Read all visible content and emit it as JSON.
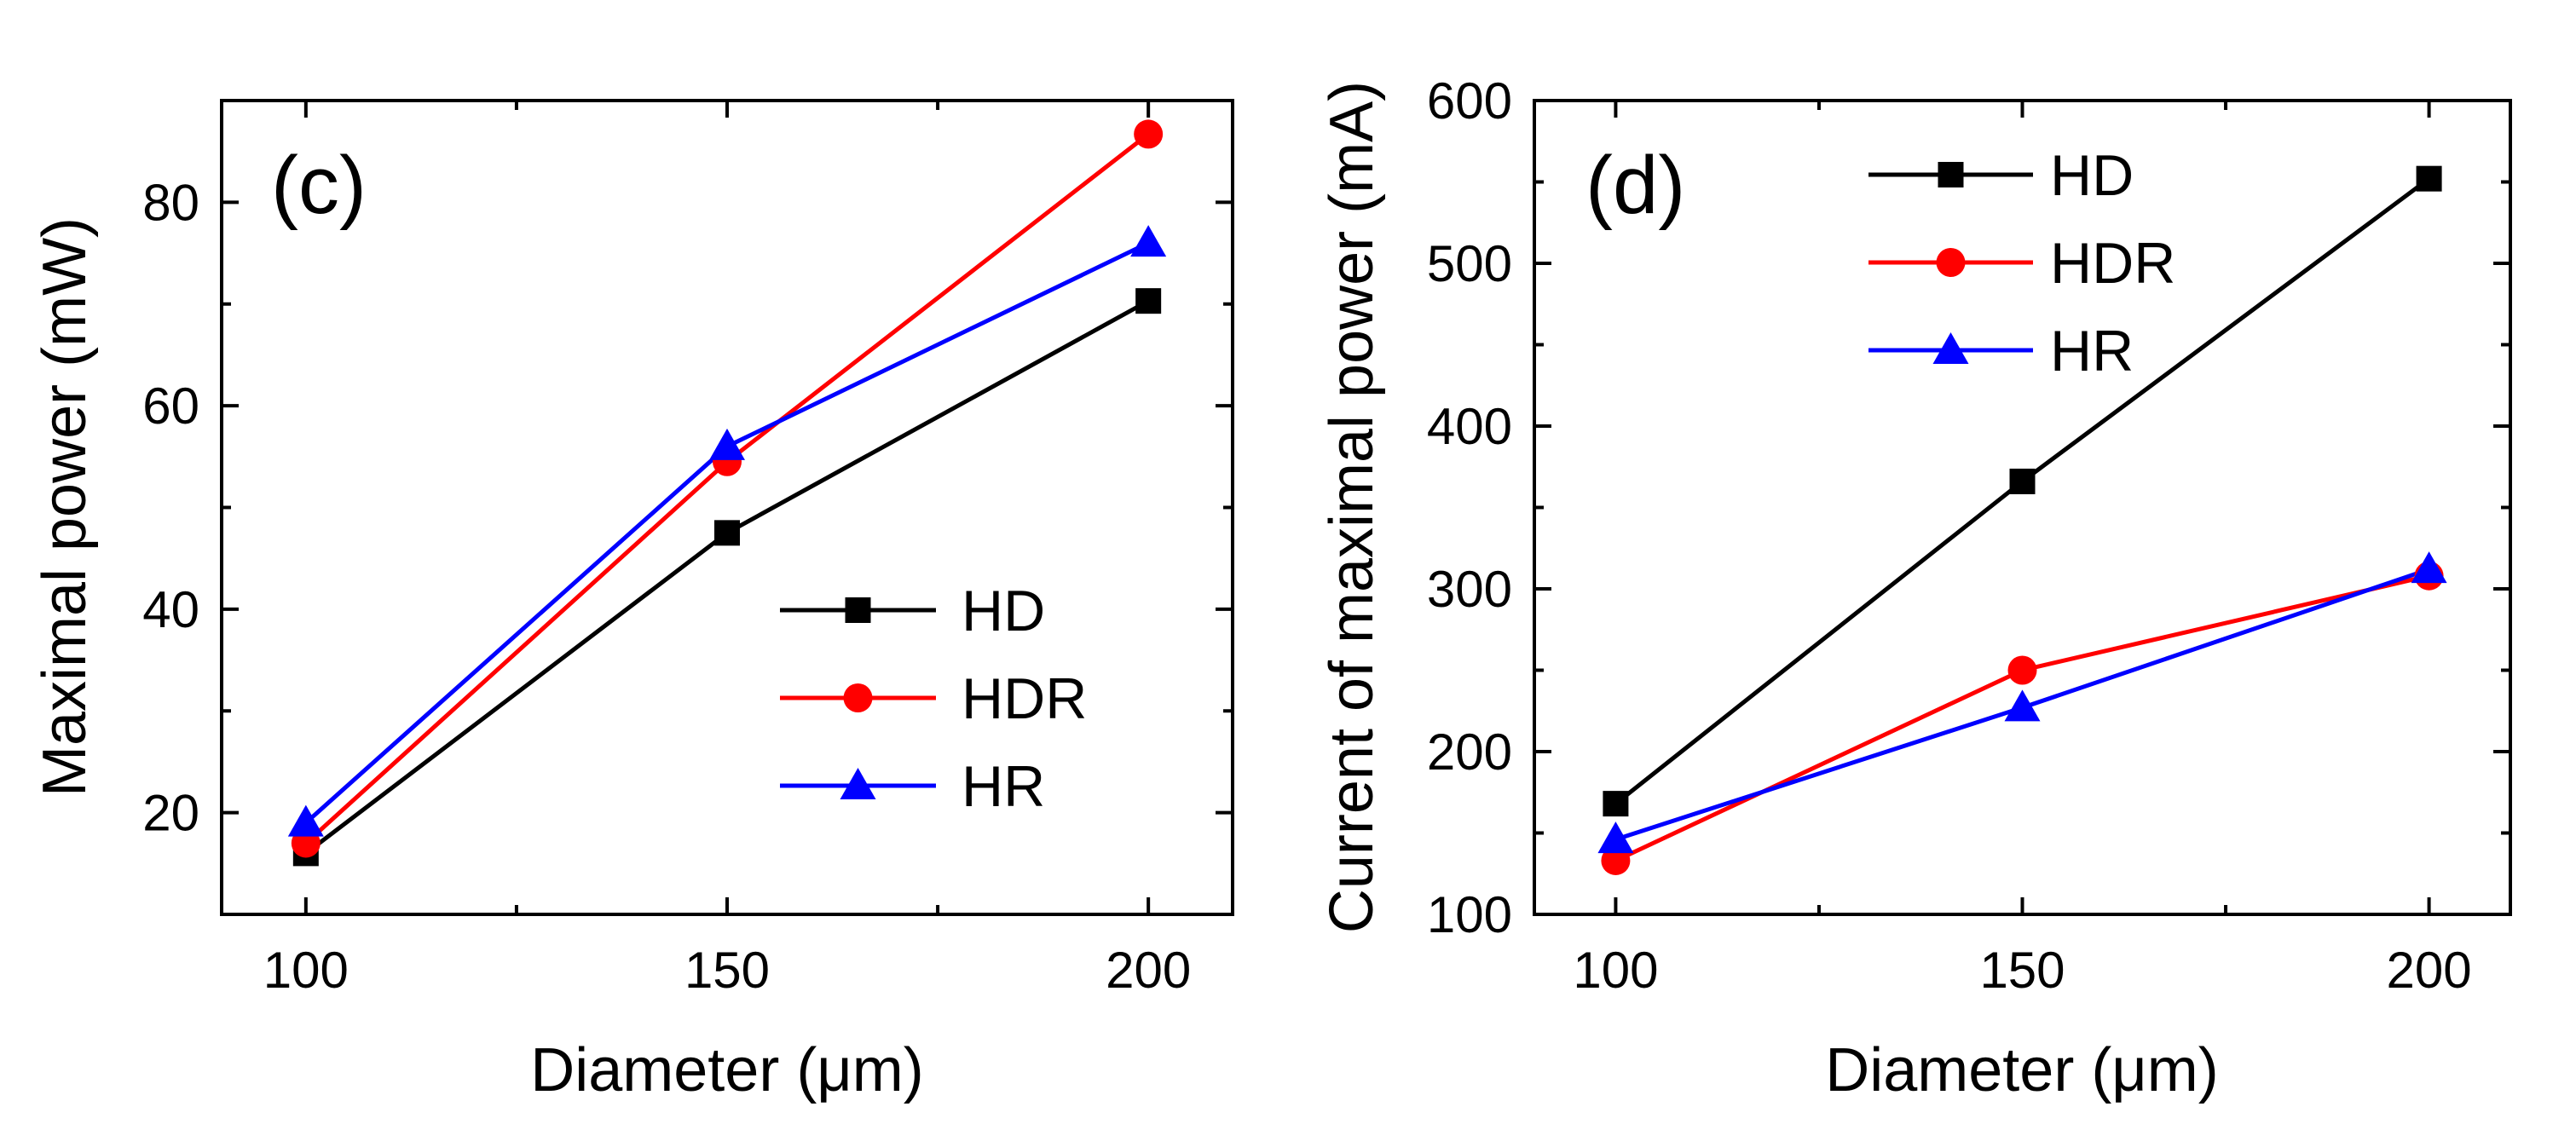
{
  "chart_data": [
    {
      "type": "line",
      "panel_label": "(c)",
      "xlabel": "Diameter (μm)",
      "ylabel": "Maximal power (mW)",
      "x": [
        100,
        150,
        200
      ],
      "xlim": [
        90,
        210
      ],
      "ylim": [
        10,
        90
      ],
      "xticks": [
        100,
        150,
        200
      ],
      "yticks": [
        20,
        40,
        60,
        80
      ],
      "legend_position": "bottom-right",
      "series": [
        {
          "name": "HD",
          "marker": "square",
          "color": "#000000",
          "values": [
            16.0,
            47.5,
            70.3
          ]
        },
        {
          "name": "HDR",
          "marker": "circle",
          "color": "#ff0000",
          "values": [
            17.0,
            54.5,
            86.7
          ]
        },
        {
          "name": "HR",
          "marker": "triangle",
          "color": "#0000ff",
          "values": [
            19.0,
            56.0,
            76.0
          ]
        }
      ]
    },
    {
      "type": "line",
      "panel_label": "(d)",
      "xlabel": "Diameter (μm)",
      "ylabel": "Current of maximal power (mA)",
      "x": [
        100,
        150,
        200
      ],
      "xlim": [
        90,
        210
      ],
      "ylim": [
        100,
        600
      ],
      "xticks": [
        100,
        150,
        200
      ],
      "yticks": [
        100,
        200,
        300,
        400,
        500,
        600
      ],
      "legend_position": "top-left",
      "series": [
        {
          "name": "HD",
          "marker": "square",
          "color": "#000000",
          "values": [
            168,
            366,
            552
          ]
        },
        {
          "name": "HDR",
          "marker": "circle",
          "color": "#ff0000",
          "values": [
            133,
            250,
            308
          ]
        },
        {
          "name": "HR",
          "marker": "triangle",
          "color": "#0000ff",
          "values": [
            146,
            227,
            312
          ]
        }
      ]
    }
  ]
}
